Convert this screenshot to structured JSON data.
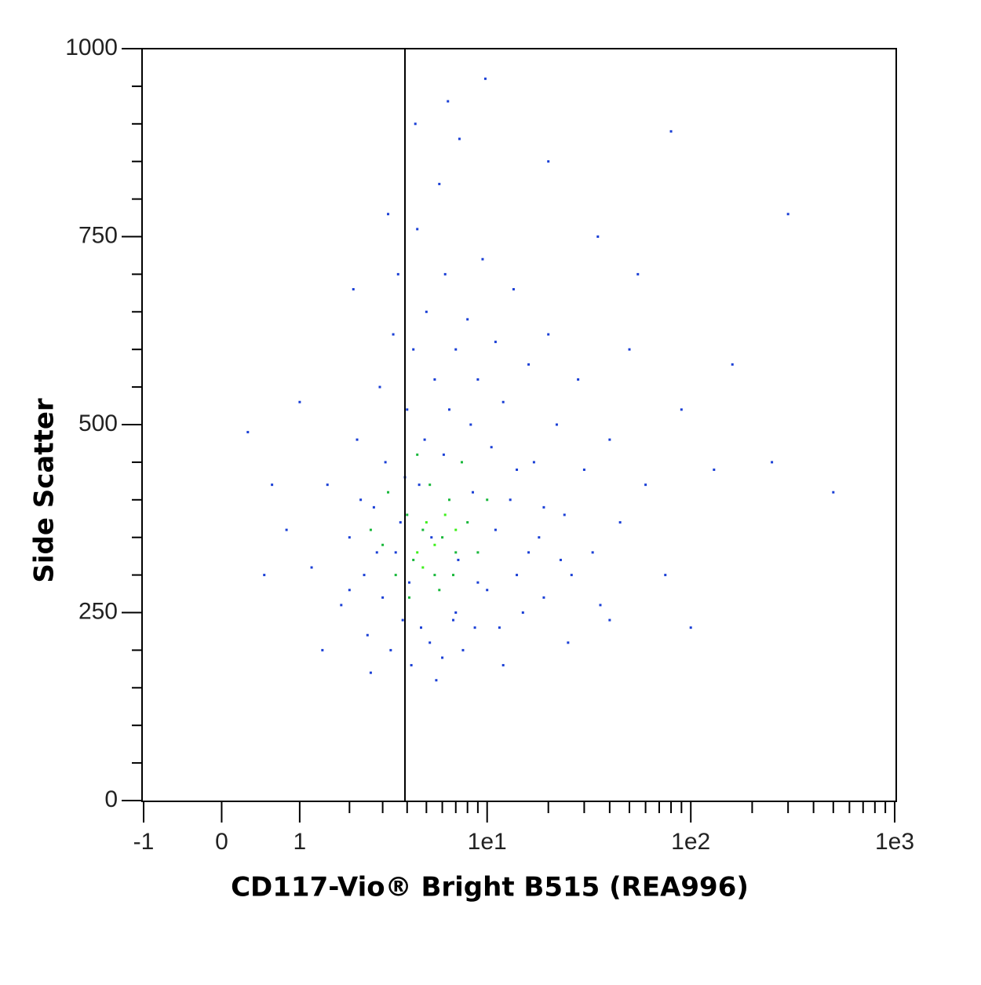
{
  "chart_data": {
    "type": "scatter",
    "xlabel": "CD117-Vio® Bright B515 (REA996)",
    "ylabel": "Side Scatter",
    "xscale": "asinh",
    "xlim": [
      -1,
      1000
    ],
    "xticks": [
      -1,
      0,
      1,
      {
        "value": 10,
        "label": "1e1"
      },
      {
        "value": 100,
        "label": "1e2"
      },
      {
        "value": 1000,
        "label": "1e3"
      }
    ],
    "xminor_ticks": [
      2,
      3,
      4,
      5,
      6,
      7,
      8,
      9,
      20,
      30,
      40,
      50,
      60,
      70,
      80,
      90,
      200,
      300,
      400,
      500,
      600,
      700,
      800,
      900
    ],
    "ylim": [
      0,
      1000
    ],
    "yticks": [
      0,
      250,
      500,
      750,
      1000
    ],
    "yminor_ticks": [
      50,
      100,
      150,
      200,
      300,
      350,
      400,
      450,
      550,
      600,
      650,
      700,
      800,
      850,
      900,
      950
    ],
    "threshold_x": 3.9,
    "series": [
      {
        "color": "#1a3fd6",
        "x": [
          1.2,
          1.5,
          1.8,
          2.0,
          2.2,
          2.4,
          2.5,
          2.7,
          2.9,
          3.0,
          3.1,
          3.3,
          3.4,
          3.5,
          3.6,
          3.8,
          4.0,
          4.2,
          4.3,
          4.5,
          4.7,
          4.9,
          5.0,
          5.2,
          5.5,
          5.8,
          6.0,
          6.2,
          6.5,
          6.8,
          7.0,
          7.3,
          7.6,
          8.0,
          8.3,
          8.7,
          9.0,
          9.5,
          10,
          10.5,
          11,
          11.5,
          12,
          13,
          13.5,
          14,
          15,
          16,
          17,
          18,
          19,
          20,
          22,
          24,
          26,
          28,
          30,
          33,
          36,
          40,
          45,
          50,
          60,
          75,
          90,
          130,
          160,
          250,
          0.3,
          0.6,
          0.8,
          0.5,
          1.0,
          2.1,
          3.2,
          4.4,
          6.4,
          9.8,
          20,
          35,
          55,
          80,
          300,
          500,
          1.4,
          2.6,
          5.6,
          12,
          25,
          40,
          100,
          2.3,
          2.8,
          3.7,
          4.1,
          4.6,
          5.3,
          6.1,
          7.2,
          8.5,
          11,
          14,
          19,
          23,
          16,
          9,
          7,
          3.9,
          2.0
        ],
        "values": [
          310,
          420,
          260,
          350,
          480,
          300,
          220,
          390,
          550,
          270,
          450,
          200,
          620,
          330,
          700,
          240,
          520,
          180,
          600,
          760,
          230,
          480,
          650,
          210,
          560,
          820,
          190,
          700,
          520,
          240,
          600,
          880,
          200,
          640,
          500,
          230,
          560,
          720,
          280,
          470,
          610,
          230,
          530,
          400,
          680,
          300,
          250,
          580,
          450,
          350,
          270,
          620,
          500,
          380,
          300,
          560,
          440,
          330,
          260,
          480,
          370,
          600,
          420,
          300,
          520,
          440,
          580,
          450,
          490,
          420,
          360,
          300,
          530,
          680,
          780,
          900,
          930,
          960,
          850,
          750,
          700,
          890,
          780,
          410,
          200,
          170,
          160,
          180,
          210,
          240,
          230,
          400,
          330,
          370,
          290,
          420,
          350,
          460,
          320,
          410,
          360,
          440,
          390,
          320,
          330,
          290,
          250,
          430,
          280
        ]
      },
      {
        "color": "#18b83a",
        "x": [
          3.0,
          3.5,
          4.0,
          4.3,
          4.8,
          5.2,
          5.5,
          6.0,
          6.5,
          7.0,
          7.5,
          8.0,
          3.2,
          4.5,
          5.8,
          9,
          10,
          2.6,
          6.8,
          4.1
        ],
        "values": [
          340,
          300,
          380,
          320,
          360,
          420,
          300,
          350,
          400,
          330,
          450,
          370,
          410,
          460,
          280,
          330,
          400,
          360,
          300,
          270
        ]
      },
      {
        "color": "#3ef01a",
        "x": [
          4.5,
          5,
          5.5,
          6.2,
          4.8,
          7
        ],
        "values": [
          330,
          370,
          340,
          380,
          310,
          360
        ]
      }
    ]
  }
}
